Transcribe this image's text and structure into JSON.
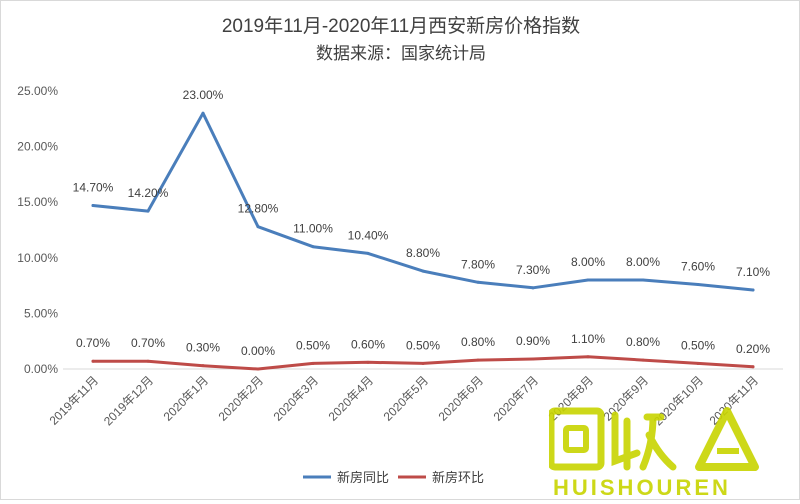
{
  "chart_data": {
    "type": "line",
    "title": "2019年11月-2020年11月西安新房价格指数",
    "subtitle": "数据来源：国家统计局",
    "categories": [
      "2019年11月",
      "2019年12月",
      "2020年1月",
      "2020年2月",
      "2020年3月",
      "2020年4月",
      "2020年5月",
      "2020年6月",
      "2020年7月",
      "2020年8月",
      "2020年9月",
      "2020年10月",
      "2020年11月"
    ],
    "series": [
      {
        "name": "新房同比",
        "color": "#4a7ebb",
        "values": [
          14.7,
          14.2,
          23.0,
          12.8,
          11.0,
          10.4,
          8.8,
          7.8,
          7.3,
          8.0,
          8.0,
          7.6,
          7.1
        ],
        "labels": [
          "14.70%",
          "14.20%",
          "23.00%",
          "12.80%",
          "11.00%",
          "10.40%",
          "8.80%",
          "7.80%",
          "7.30%",
          "8.00%",
          "8.00%",
          "7.60%",
          "7.10%"
        ]
      },
      {
        "name": "新房环比",
        "color": "#be4b48",
        "values": [
          0.7,
          0.7,
          0.3,
          0.0,
          0.5,
          0.6,
          0.5,
          0.8,
          0.9,
          1.1,
          0.8,
          0.5,
          0.2
        ],
        "labels": [
          "0.70%",
          "0.70%",
          "0.30%",
          "0.00%",
          "0.50%",
          "0.60%",
          "0.50%",
          "0.80%",
          "0.90%",
          "1.10%",
          "0.80%",
          "0.50%",
          "0.20%"
        ]
      }
    ],
    "y_ticks": [
      "0.00%",
      "5.00%",
      "10.00%",
      "15.00%",
      "20.00%",
      "25.00%"
    ],
    "ylim": [
      0,
      25
    ],
    "grid": false,
    "legend_position": "bottom"
  },
  "watermark": {
    "logo_text": "回收",
    "brand_text": "HUISHOUREN",
    "color": "#c8d400"
  }
}
